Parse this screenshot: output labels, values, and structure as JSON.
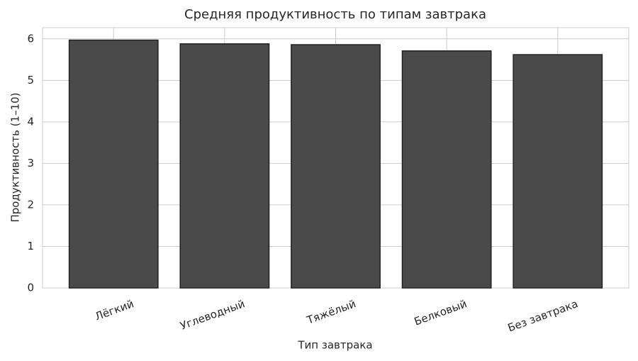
{
  "chart_data": {
    "type": "bar",
    "title": "Средняя продуктивность по типам завтрака",
    "x_label": "Тип завтрака",
    "y_label": "Продуктивность (1–10)",
    "categories": [
      "Лёгкий",
      "Углеводный",
      "Тяжёлый",
      "Белковый",
      "Без завтрака"
    ],
    "values": [
      5.97,
      5.88,
      5.86,
      5.71,
      5.62
    ],
    "color": "#4a4a4a",
    "edge_color": "#222222",
    "ylim": [
      0,
      6.27
    ],
    "yticks": [
      0,
      1,
      2,
      3,
      4,
      5,
      6
    ],
    "grid": true
  }
}
